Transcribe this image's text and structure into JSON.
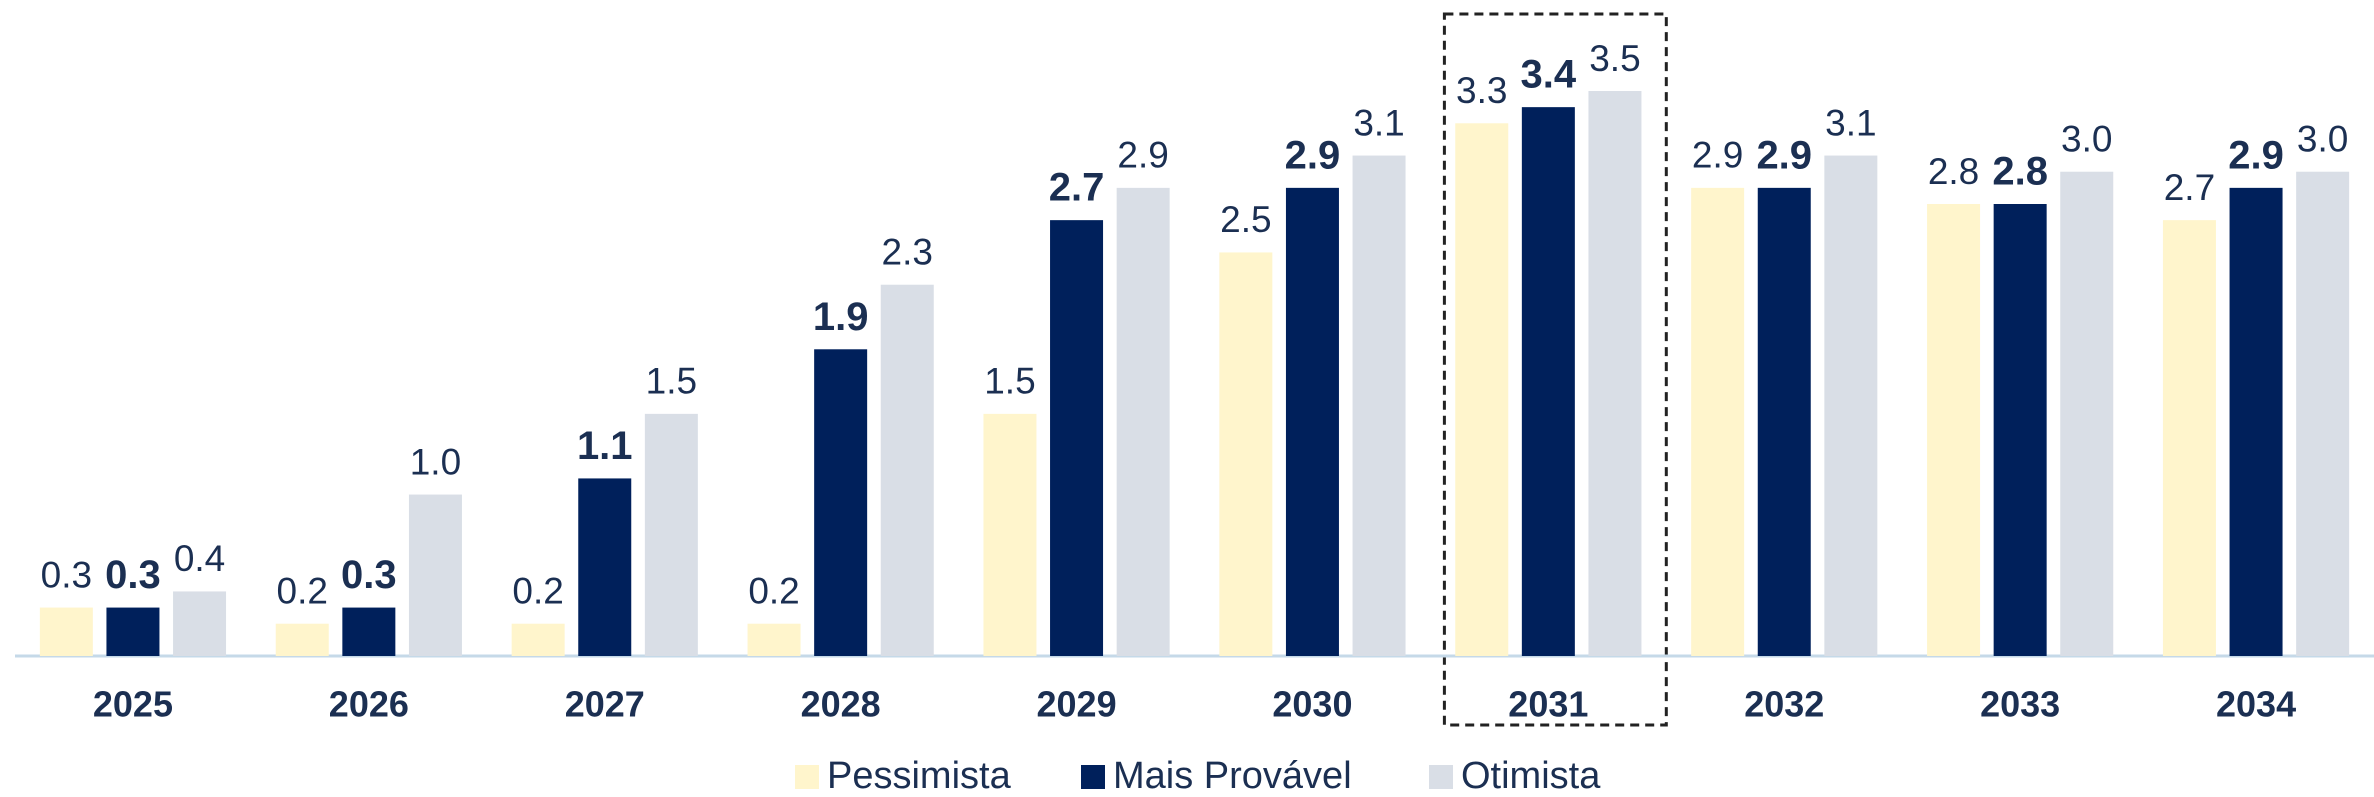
{
  "chart_data": {
    "type": "bar",
    "categories": [
      "2025",
      "2026",
      "2027",
      "2028",
      "2029",
      "2030",
      "2031",
      "2032",
      "2033",
      "2034"
    ],
    "series": [
      {
        "name": "Pessimista",
        "color": "#fff5cc",
        "values": [
          0.3,
          0.2,
          0.2,
          0.2,
          1.5,
          2.5,
          3.3,
          2.9,
          2.8,
          2.7
        ],
        "value_labels": [
          "0.3",
          "0.2",
          "0.2",
          "0.2",
          "1.5",
          "2.5",
          "3.3",
          "2.9",
          "2.8",
          "2.7"
        ]
      },
      {
        "name": "Mais Provável",
        "color": "#00205b",
        "values": [
          0.3,
          0.3,
          1.1,
          1.9,
          2.7,
          2.9,
          3.4,
          2.9,
          2.8,
          2.9
        ],
        "value_labels": [
          "0.3",
          "0.3",
          "1.1",
          "1.9",
          "2.7",
          "2.9",
          "3.4",
          "2.9",
          "2.8",
          "2.9"
        ]
      },
      {
        "name": "Otimista",
        "color": "#d9dee6",
        "values": [
          0.4,
          1.0,
          1.5,
          2.3,
          2.9,
          3.1,
          3.5,
          3.1,
          3.0,
          3.0
        ],
        "value_labels": [
          "0.4",
          "1.0",
          "1.5",
          "2.3",
          "2.9",
          "3.1",
          "3.5",
          "3.1",
          "3.0",
          "3.0"
        ]
      }
    ],
    "highlight_index": 6,
    "legend": "bottom"
  }
}
